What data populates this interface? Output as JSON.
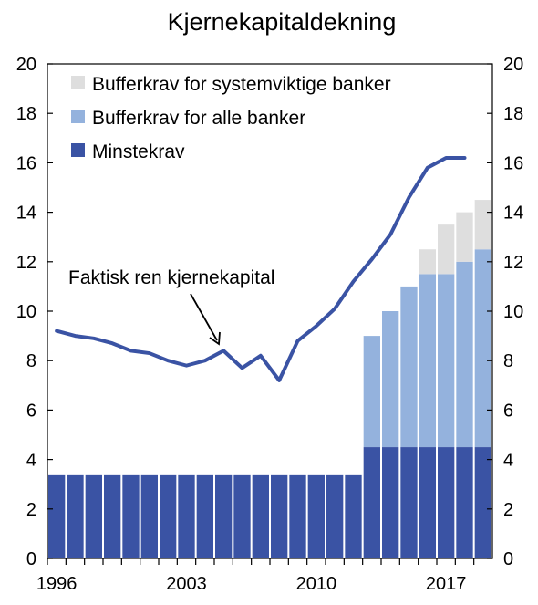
{
  "chart_data": {
    "type": "bar",
    "title": "Kjernekapitaldekning",
    "ylim": [
      0,
      20
    ],
    "y_ticks": [
      "0",
      "2",
      "4",
      "6",
      "8",
      "10",
      "12",
      "14",
      "16",
      "18",
      "20"
    ],
    "x_ticks": [
      "1996",
      "2003",
      "2010",
      "2017"
    ],
    "x_tick_years": [
      1996,
      2003,
      2010,
      2017
    ],
    "years": [
      1996,
      1997,
      1998,
      1999,
      2000,
      2001,
      2002,
      2003,
      2004,
      2005,
      2006,
      2007,
      2008,
      2009,
      2010,
      2011,
      2012,
      2013,
      2014,
      2015,
      2016,
      2017,
      2018,
      2019
    ],
    "stacked_series": [
      {
        "name": "Minstekrav",
        "color": "#3a53a4",
        "values": [
          3.4,
          3.4,
          3.4,
          3.4,
          3.4,
          3.4,
          3.4,
          3.4,
          3.4,
          3.4,
          3.4,
          3.4,
          3.4,
          3.4,
          3.4,
          3.4,
          3.4,
          4.5,
          4.5,
          4.5,
          4.5,
          4.5,
          4.5,
          4.5
        ]
      },
      {
        "name": "Bufferkrav for alle banker",
        "color": "#94b2dd",
        "values": [
          0,
          0,
          0,
          0,
          0,
          0,
          0,
          0,
          0,
          0,
          0,
          0,
          0,
          0,
          0,
          0,
          0,
          4.5,
          5.5,
          6.5,
          7.0,
          7.0,
          7.5,
          8.0
        ]
      },
      {
        "name": "Bufferkrav for systemviktige banker",
        "color": "#dedede",
        "values": [
          0,
          0,
          0,
          0,
          0,
          0,
          0,
          0,
          0,
          0,
          0,
          0,
          0,
          0,
          0,
          0,
          0,
          0,
          0,
          0,
          1.0,
          2.0,
          2.0,
          2.0
        ]
      }
    ],
    "line_series": {
      "name": "Faktisk ren kjernekapital",
      "color": "#3a53a4",
      "x": [
        1996,
        1997,
        1998,
        1999,
        2000,
        2001,
        2002,
        2003,
        2004,
        2005,
        2006,
        2007,
        2008,
        2009,
        2010,
        2011,
        2012,
        2013,
        2014,
        2015,
        2016,
        2017,
        2018
      ],
      "values": [
        9.2,
        9.0,
        8.9,
        8.7,
        8.4,
        8.3,
        8.0,
        7.8,
        8.0,
        8.4,
        7.7,
        8.2,
        7.2,
        8.8,
        9.4,
        10.1,
        11.2,
        12.1,
        13.1,
        14.6,
        15.8,
        16.2,
        16.2
      ]
    },
    "legend_order": [
      "Bufferkrav for systemviktige banker",
      "Bufferkrav for alle banker",
      "Minstekrav"
    ],
    "legend_placement": "top-left",
    "annotation": "Faktisk ren kjernekapital",
    "grid": false
  }
}
